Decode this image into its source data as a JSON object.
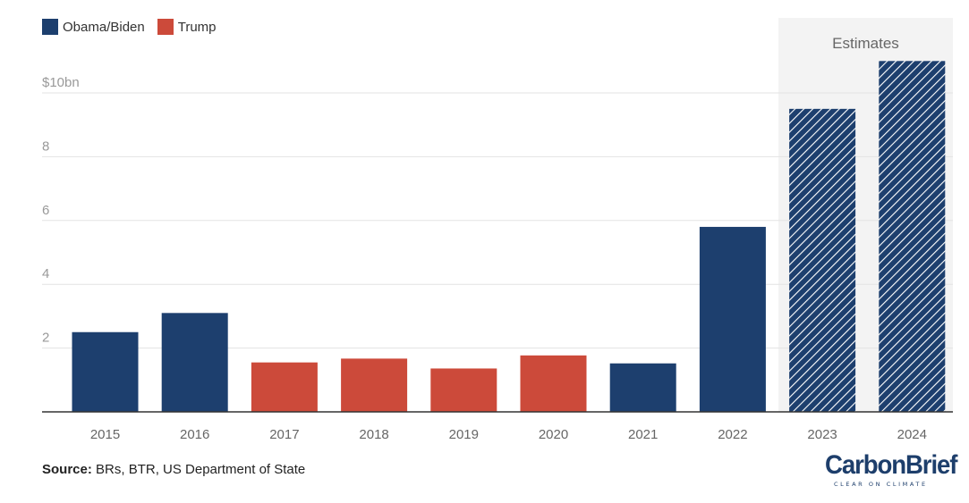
{
  "legend": [
    {
      "label": "Obama/Biden",
      "color": "#1d3f6e"
    },
    {
      "label": "Trump",
      "color": "#cc4a3a"
    }
  ],
  "source": {
    "label": "Source:",
    "text": " BRs, BTR, US Department of State"
  },
  "logo": {
    "name": "CarbonBrief",
    "tagline": "CLEAR ON CLIMATE"
  },
  "chart_data": {
    "type": "bar",
    "categories": [
      "2015",
      "2016",
      "2017",
      "2018",
      "2019",
      "2020",
      "2021",
      "2022",
      "2023",
      "2024"
    ],
    "values": [
      2.5,
      3.1,
      1.55,
      1.67,
      1.36,
      1.77,
      1.52,
      5.8,
      9.5,
      11.0
    ],
    "party": [
      "Obama/Biden",
      "Obama/Biden",
      "Trump",
      "Trump",
      "Trump",
      "Trump",
      "Obama/Biden",
      "Obama/Biden",
      "Obama/Biden",
      "Obama/Biden"
    ],
    "estimated": [
      false,
      false,
      false,
      false,
      false,
      false,
      false,
      false,
      true,
      true
    ],
    "estimate_label": "Estimates",
    "yticks": [
      {
        "value": 2,
        "label": "2"
      },
      {
        "value": 4,
        "label": "4"
      },
      {
        "value": 6,
        "label": "6"
      },
      {
        "value": 8,
        "label": "8"
      },
      {
        "value": 10,
        "label": "$10bn"
      }
    ],
    "ylim": [
      0,
      12
    ],
    "grid": true,
    "colors": {
      "Obama/Biden": "#1d3f6e",
      "Trump": "#cc4a3a",
      "grid": "#e3e3e3",
      "axis": "#333333",
      "estimates_band": "#f3f3f3"
    }
  }
}
